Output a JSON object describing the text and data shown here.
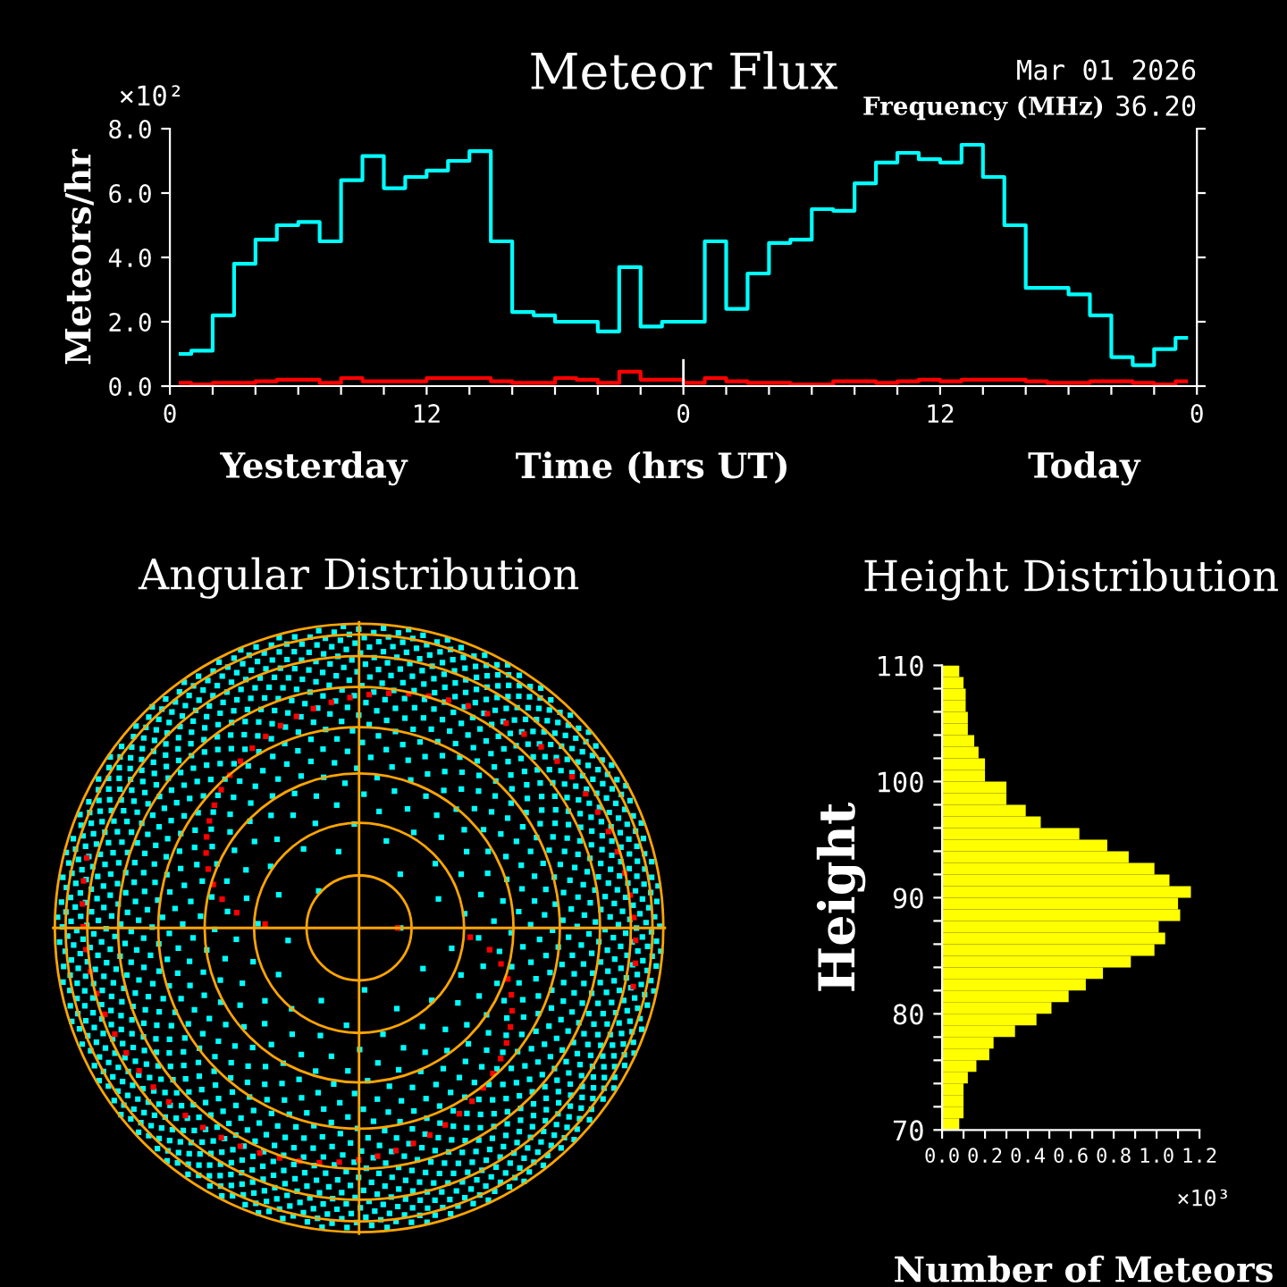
{
  "chart_data": [
    {
      "type": "step",
      "title": "Meteor Flux",
      "ylabel": "Meteors/hr",
      "xlabel": "Time (hrs UT)",
      "annotations": [
        "×10²",
        "Mar 01 2026",
        "Frequency (MHz)",
        "36.20",
        "Yesterday",
        "Today"
      ],
      "x": [
        "2026-02-28T00:30",
        "2026-02-28T01:30",
        "2026-02-28T02:30",
        "2026-02-28T03:30",
        "2026-02-28T04:30",
        "2026-02-28T05:30",
        "2026-02-28T06:30",
        "2026-02-28T07:30",
        "2026-02-28T08:30",
        "2026-02-28T09:30",
        "2026-02-28T10:30",
        "2026-02-28T11:30",
        "2026-02-28T12:30",
        "2026-02-28T13:30",
        "2026-02-28T14:30",
        "2026-02-28T15:30",
        "2026-02-28T16:30",
        "2026-02-28T17:30",
        "2026-02-28T18:30",
        "2026-02-28T19:30",
        "2026-02-28T20:30",
        "2026-02-28T21:30",
        "2026-02-28T22:30",
        "2026-02-28T23:30",
        "2026-03-01T00:30",
        "2026-03-01T01:30",
        "2026-03-01T02:30",
        "2026-03-01T03:30",
        "2026-03-01T04:30",
        "2026-03-01T05:30",
        "2026-03-01T06:30",
        "2026-03-01T07:30",
        "2026-03-01T08:30",
        "2026-03-01T09:30",
        "2026-03-01T10:30",
        "2026-03-01T11:30",
        "2026-03-01T12:30",
        "2026-03-01T13:30",
        "2026-03-01T14:30",
        "2026-03-01T15:30",
        "2026-03-01T16:30",
        "2026-03-01T17:30",
        "2026-03-01T18:30",
        "2026-03-01T19:30",
        "2026-03-01T20:30",
        "2026-03-01T21:30",
        "2026-03-01T22:30",
        "2026-03-01T23:30"
      ],
      "series": [
        {
          "color": "#00ffff",
          "values": [
            1.0,
            1.1,
            2.2,
            3.8,
            4.55,
            5.0,
            5.1,
            4.5,
            6.4,
            7.15,
            6.15,
            6.5,
            6.7,
            7.0,
            7.3,
            4.5,
            2.3,
            2.2,
            2.0,
            2.0,
            1.7,
            3.7,
            1.85,
            2.0,
            2.0,
            4.5,
            2.4,
            3.5,
            4.45,
            4.55,
            5.5,
            5.45,
            6.3,
            6.95,
            7.25,
            7.05,
            6.95,
            7.5,
            6.5,
            5.0,
            3.05,
            3.05,
            2.85,
            2.2,
            0.9,
            0.65,
            1.15,
            1.5
          ]
        },
        {
          "color": "#ff0000",
          "values": [
            0.1,
            0.05,
            0.1,
            0.1,
            0.15,
            0.2,
            0.2,
            0.1,
            0.25,
            0.15,
            0.15,
            0.15,
            0.25,
            0.25,
            0.25,
            0.15,
            0.1,
            0.1,
            0.25,
            0.2,
            0.1,
            0.45,
            0.2,
            0.2,
            0.1,
            0.25,
            0.15,
            0.1,
            0.1,
            0.05,
            0.05,
            0.15,
            0.15,
            0.1,
            0.15,
            0.2,
            0.15,
            0.2,
            0.2,
            0.2,
            0.15,
            0.1,
            0.1,
            0.15,
            0.15,
            0.1,
            0.05,
            0.15
          ]
        }
      ],
      "xlim": [
        "2026-02-28T00:00",
        "2026-03-02T00:00"
      ],
      "ylim": [
        0,
        8
      ],
      "xticks": [
        {
          "value": "2026-02-28T00:00",
          "label": "0"
        },
        {
          "value": "2026-02-28T02:00",
          "label": null
        },
        {
          "value": "2026-02-28T04:00",
          "label": null
        },
        {
          "value": "2026-02-28T06:00",
          "label": null
        },
        {
          "value": "2026-02-28T08:00",
          "label": null
        },
        {
          "value": "2026-02-28T10:00",
          "label": null
        },
        {
          "value": "2026-02-28T12:00",
          "label": "12"
        },
        {
          "value": "2026-02-28T14:00",
          "label": null
        },
        {
          "value": "2026-02-28T16:00",
          "label": null
        },
        {
          "value": "2026-02-28T18:00",
          "label": null
        },
        {
          "value": "2026-02-28T20:00",
          "label": null
        },
        {
          "value": "2026-02-28T22:00",
          "label": null
        },
        {
          "value": "2026-03-01T00:00",
          "label": "0"
        },
        {
          "value": "2026-03-01T02:00",
          "label": null
        },
        {
          "value": "2026-03-01T04:00",
          "label": null
        },
        {
          "value": "2026-03-01T06:00",
          "label": null
        },
        {
          "value": "2026-03-01T08:00",
          "label": null
        },
        {
          "value": "2026-03-01T10:00",
          "label": null
        },
        {
          "value": "2026-03-01T12:00",
          "label": "12"
        },
        {
          "value": "2026-03-01T14:00",
          "label": null
        },
        {
          "value": "2026-03-01T16:00",
          "label": null
        },
        {
          "value": "2026-03-01T18:00",
          "label": null
        },
        {
          "value": "2026-03-01T20:00",
          "label": null
        },
        {
          "value": "2026-03-01T22:00",
          "label": null
        },
        {
          "value": "2026-03-02T00:00",
          "label": "0"
        }
      ],
      "yticks": [
        {
          "value": 0,
          "label": "0.0"
        },
        {
          "value": 2,
          "label": "2.0"
        },
        {
          "value": 4,
          "label": "4.0"
        },
        {
          "value": 6,
          "label": "6.0"
        },
        {
          "value": 8,
          "label": "8.0"
        }
      ],
      "ref_lines": [
        {
          "axis": "x",
          "value": "2026-03-01T00:00",
          "color": "#ffffff"
        }
      ],
      "grid": false,
      "legend": false
    },
    {
      "type": "other",
      "title": "Angular Distribution"
    },
    {
      "type": "histogram",
      "orientation": "horizontal",
      "title": "Height Distribution",
      "ylabel": "Height",
      "xlabel": "Number of Meteors",
      "color": "#ffff00",
      "annotations": [
        "×10³"
      ],
      "bins": [
        70,
        71,
        72,
        73,
        74,
        75,
        76,
        77,
        78,
        79,
        80,
        81,
        82,
        83,
        84,
        85,
        86,
        87,
        88,
        89,
        90,
        91,
        92,
        93,
        94,
        95,
        96,
        97,
        98,
        99,
        100,
        101,
        102,
        103,
        104,
        105,
        106,
        107,
        108,
        109,
        110
      ],
      "values": [
        0.08,
        0.1,
        0.1,
        0.1,
        0.12,
        0.16,
        0.22,
        0.24,
        0.34,
        0.44,
        0.51,
        0.59,
        0.67,
        0.75,
        0.88,
        0.99,
        1.04,
        1.01,
        1.11,
        1.1,
        1.16,
        1.06,
        0.99,
        0.87,
        0.77,
        0.64,
        0.46,
        0.39,
        0.3,
        0.3,
        0.2,
        0.2,
        0.17,
        0.15,
        0.12,
        0.12,
        0.11,
        0.11,
        0.1,
        0.08
      ],
      "xlim": [
        0,
        1.2
      ],
      "ylim": [
        70,
        110
      ],
      "xticks": [
        {
          "value": 0,
          "label": "0.0"
        },
        {
          "value": 0.1,
          "label": null
        },
        {
          "value": 0.2,
          "label": "0.2"
        },
        {
          "value": 0.3,
          "label": null
        },
        {
          "value": 0.4,
          "label": "0.4"
        },
        {
          "value": 0.5,
          "label": null
        },
        {
          "value": 0.6,
          "label": "0.6"
        },
        {
          "value": 0.7,
          "label": null
        },
        {
          "value": 0.8,
          "label": "0.8"
        },
        {
          "value": 0.9,
          "label": null
        },
        {
          "value": 1.0,
          "label": "1.0"
        },
        {
          "value": 1.1,
          "label": null
        },
        {
          "value": 1.2,
          "label": "1.2"
        }
      ],
      "yticks": [
        70,
        {
          "value": 72,
          "label": null
        },
        {
          "value": 74,
          "label": null
        },
        {
          "value": 76,
          "label": null
        },
        {
          "value": 78,
          "label": null
        },
        80,
        {
          "value": 82,
          "label": null
        },
        {
          "value": 84,
          "label": null
        },
        {
          "value": 86,
          "label": null
        },
        {
          "value": 88,
          "label": null
        },
        90,
        {
          "value": 92,
          "label": null
        },
        {
          "value": 94,
          "label": null
        },
        {
          "value": 96,
          "label": null
        },
        {
          "value": 98,
          "label": null
        },
        100,
        {
          "value": 102,
          "label": null
        },
        {
          "value": 104,
          "label": null
        },
        {
          "value": 106,
          "label": null
        },
        {
          "value": 108,
          "label": null
        },
        110
      ]
    }
  ]
}
